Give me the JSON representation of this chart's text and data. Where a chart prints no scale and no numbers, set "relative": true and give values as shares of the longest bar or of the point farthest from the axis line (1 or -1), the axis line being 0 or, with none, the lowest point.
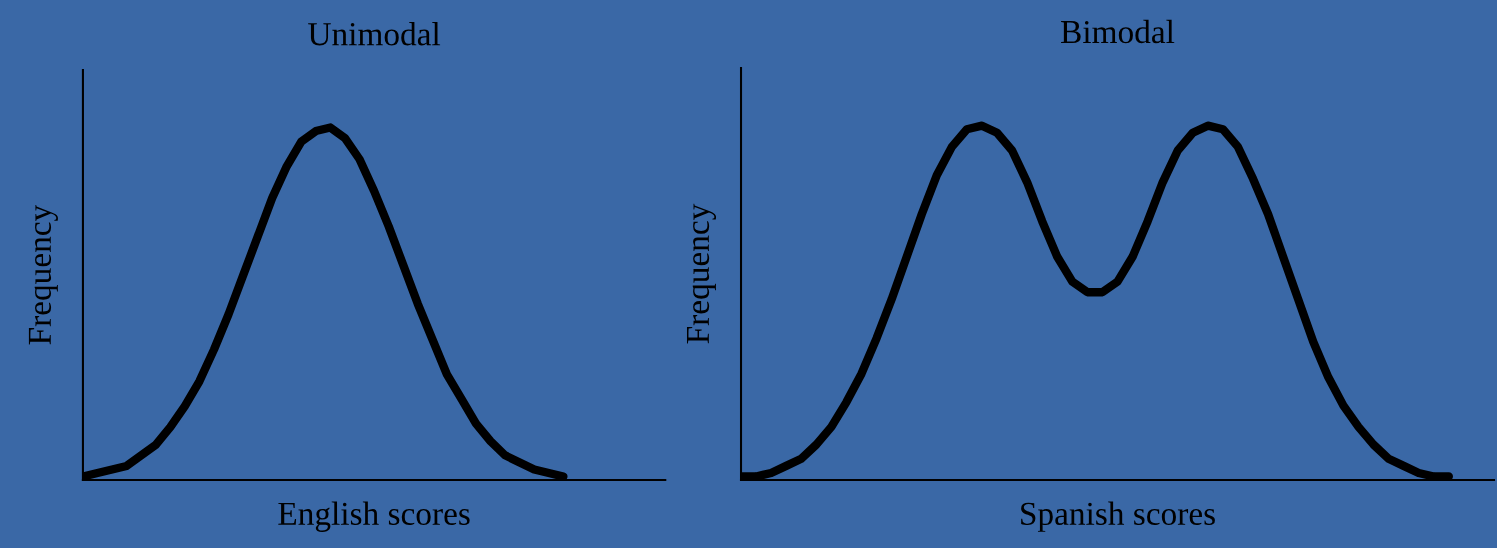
{
  "chart_data": [
    {
      "type": "line",
      "title": "Unimodal",
      "xlabel": "English scores",
      "ylabel": "Frequency",
      "relative": true,
      "marker": "none",
      "line_style": "solid",
      "categories": [
        null,
        null,
        null,
        null,
        null,
        null,
        null,
        null,
        null,
        null,
        null,
        null,
        null,
        null,
        null,
        null,
        null,
        null,
        null,
        null,
        null,
        null,
        null,
        null,
        null,
        null,
        null,
        null,
        null,
        null,
        null,
        null,
        null,
        null,
        null,
        null,
        null,
        null,
        null,
        null,
        null
      ],
      "series": [
        {
          "color": "#000000",
          "values": [
            0.01,
            0.02,
            0.03,
            0.04,
            0.07,
            0.1,
            0.15,
            0.21,
            0.28,
            0.37,
            0.47,
            0.58,
            0.69,
            0.8,
            0.89,
            0.96,
            0.99,
            1.0,
            0.97,
            0.91,
            0.82,
            0.72,
            0.61,
            0.5,
            0.4,
            0.3,
            0.23,
            0.16,
            0.11,
            0.07,
            0.05,
            0.03,
            0.02,
            0.01,
            null,
            null,
            null,
            null,
            null,
            null,
            null
          ]
        }
      ]
    },
    {
      "type": "line",
      "title": "Bimodal",
      "xlabel": "Spanish scores",
      "ylabel": "Frequency",
      "relative": true,
      "marker": "none",
      "line_style": "solid",
      "categories": [
        null,
        null,
        null,
        null,
        null,
        null,
        null,
        null,
        null,
        null,
        null,
        null,
        null,
        null,
        null,
        null,
        null,
        null,
        null,
        null,
        null,
        null,
        null,
        null,
        null,
        null,
        null,
        null,
        null,
        null,
        null,
        null,
        null,
        null,
        null,
        null,
        null,
        null,
        null,
        null,
        null,
        null,
        null,
        null,
        null,
        null,
        null,
        null,
        null,
        null,
        null
      ],
      "series": [
        {
          "color": "#000000",
          "values": [
            0.01,
            0.01,
            0.02,
            0.04,
            0.06,
            0.1,
            0.15,
            0.22,
            0.3,
            0.4,
            0.51,
            0.63,
            0.75,
            0.86,
            0.94,
            0.99,
            1.0,
            0.98,
            0.93,
            0.84,
            0.73,
            0.63,
            0.56,
            0.53,
            0.53,
            0.56,
            0.63,
            0.73,
            0.84,
            0.93,
            0.98,
            1.0,
            0.99,
            0.94,
            0.85,
            0.75,
            0.63,
            0.51,
            0.39,
            0.29,
            0.21,
            0.15,
            0.1,
            0.06,
            0.04,
            0.02,
            0.01,
            0.01,
            null,
            null,
            null
          ]
        }
      ]
    }
  ]
}
